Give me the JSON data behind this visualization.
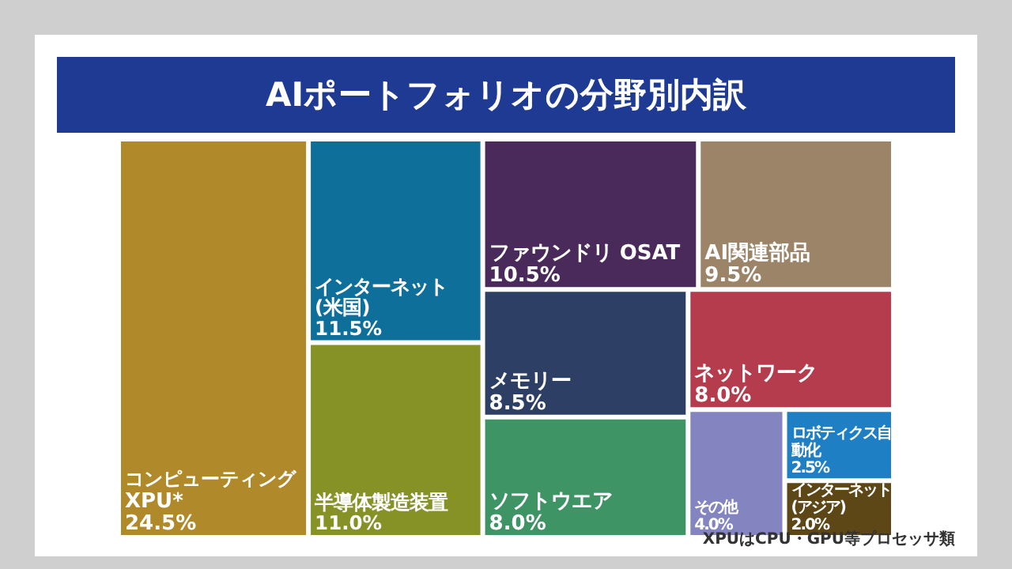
{
  "chart_data": {
    "type": "other",
    "title": "AIポートフォリオの分野別内訳",
    "categories": [
      "コンピューティング\nXPU*",
      "インターネット\n(米国)",
      "半導体製造装置",
      "ファウンドリ OSAT",
      "AI関連部品",
      "メモリー",
      "ソフトウエア",
      "ネットワーク",
      "その他",
      "ロボティクス自動化",
      "インターネット\n(アジア)"
    ],
    "values": [
      24.5,
      11.5,
      11.0,
      10.5,
      9.5,
      8.5,
      8.0,
      8.0,
      4.0,
      2.5,
      2.0
    ],
    "value_labels": [
      "24.5%",
      "11.5%",
      "11.0%",
      "10.5%",
      "9.5%",
      "8.5%",
      "8.0%",
      "8.0%",
      "4.0%",
      "2.5%",
      "2.0%"
    ],
    "colors": [
      "#b08a2a",
      "#0e6f9a",
      "#869126",
      "#4a2a5a",
      "#9c8468",
      "#2e3f66",
      "#3f9466",
      "#b53c4c",
      "#8484c0",
      "#1f7fc4",
      "#5e4716"
    ],
    "annotations": [
      "XPUはCPU・GPU等プロセッサ類"
    ]
  }
}
